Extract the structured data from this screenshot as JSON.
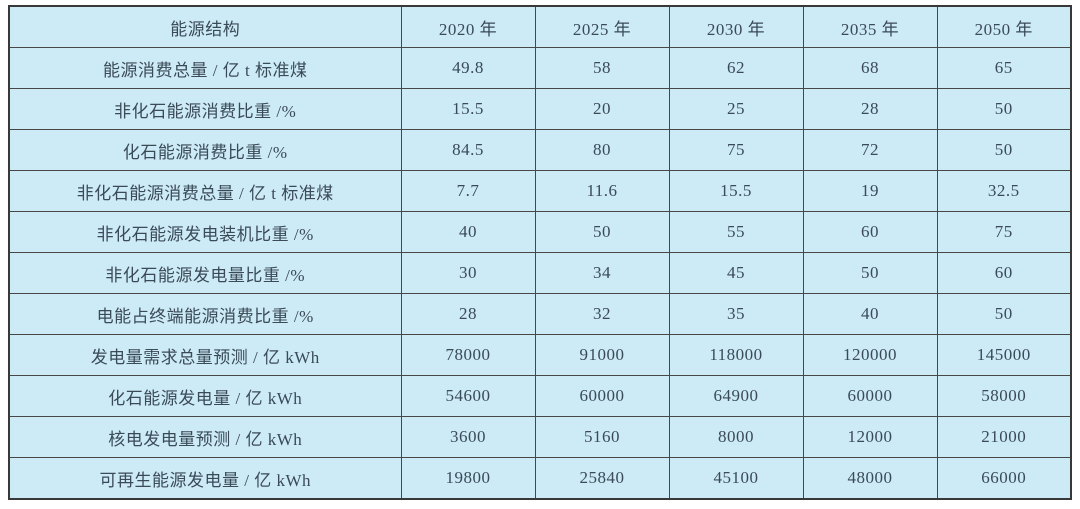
{
  "chart_data": {
    "type": "table",
    "corner_header": "能源结构",
    "columns": [
      "2020 年",
      "2025 年",
      "2030 年",
      "2035 年",
      "2050 年"
    ],
    "rows": [
      {
        "label": "能源消费总量 / 亿 t 标准煤",
        "values": [
          49.8,
          58,
          62,
          68,
          65
        ]
      },
      {
        "label": "非化石能源消费比重 /%",
        "values": [
          15.5,
          20,
          25,
          28,
          50
        ]
      },
      {
        "label": "化石能源消费比重 /%",
        "values": [
          84.5,
          80,
          75,
          72,
          50
        ]
      },
      {
        "label": "非化石能源消费总量 / 亿 t 标准煤",
        "values": [
          7.7,
          11.6,
          15.5,
          19,
          32.5
        ]
      },
      {
        "label": "非化石能源发电装机比重 /%",
        "values": [
          40,
          50,
          55,
          60,
          75
        ]
      },
      {
        "label": "非化石能源发电量比重 /%",
        "values": [
          30,
          34,
          45,
          50,
          60
        ]
      },
      {
        "label": "电能占终端能源消费比重 /%",
        "values": [
          28,
          32,
          35,
          40,
          50
        ]
      },
      {
        "label": "发电量需求总量预测 / 亿 kWh",
        "values": [
          78000,
          91000,
          118000,
          120000,
          145000
        ]
      },
      {
        "label": "化石能源发电量 / 亿 kWh",
        "values": [
          54600,
          60000,
          64900,
          60000,
          58000
        ]
      },
      {
        "label": "核电发电量预测 / 亿 kWh",
        "values": [
          3600,
          5160,
          8000,
          12000,
          21000
        ]
      },
      {
        "label": "可再生能源发电量 / 亿 kWh",
        "values": [
          19800,
          25840,
          45100,
          48000,
          66000
        ]
      }
    ],
    "layout": {
      "grid": true,
      "cell_bg": "#cdebf6",
      "border_color": "#474747",
      "text_color": "#3a4a57"
    }
  }
}
